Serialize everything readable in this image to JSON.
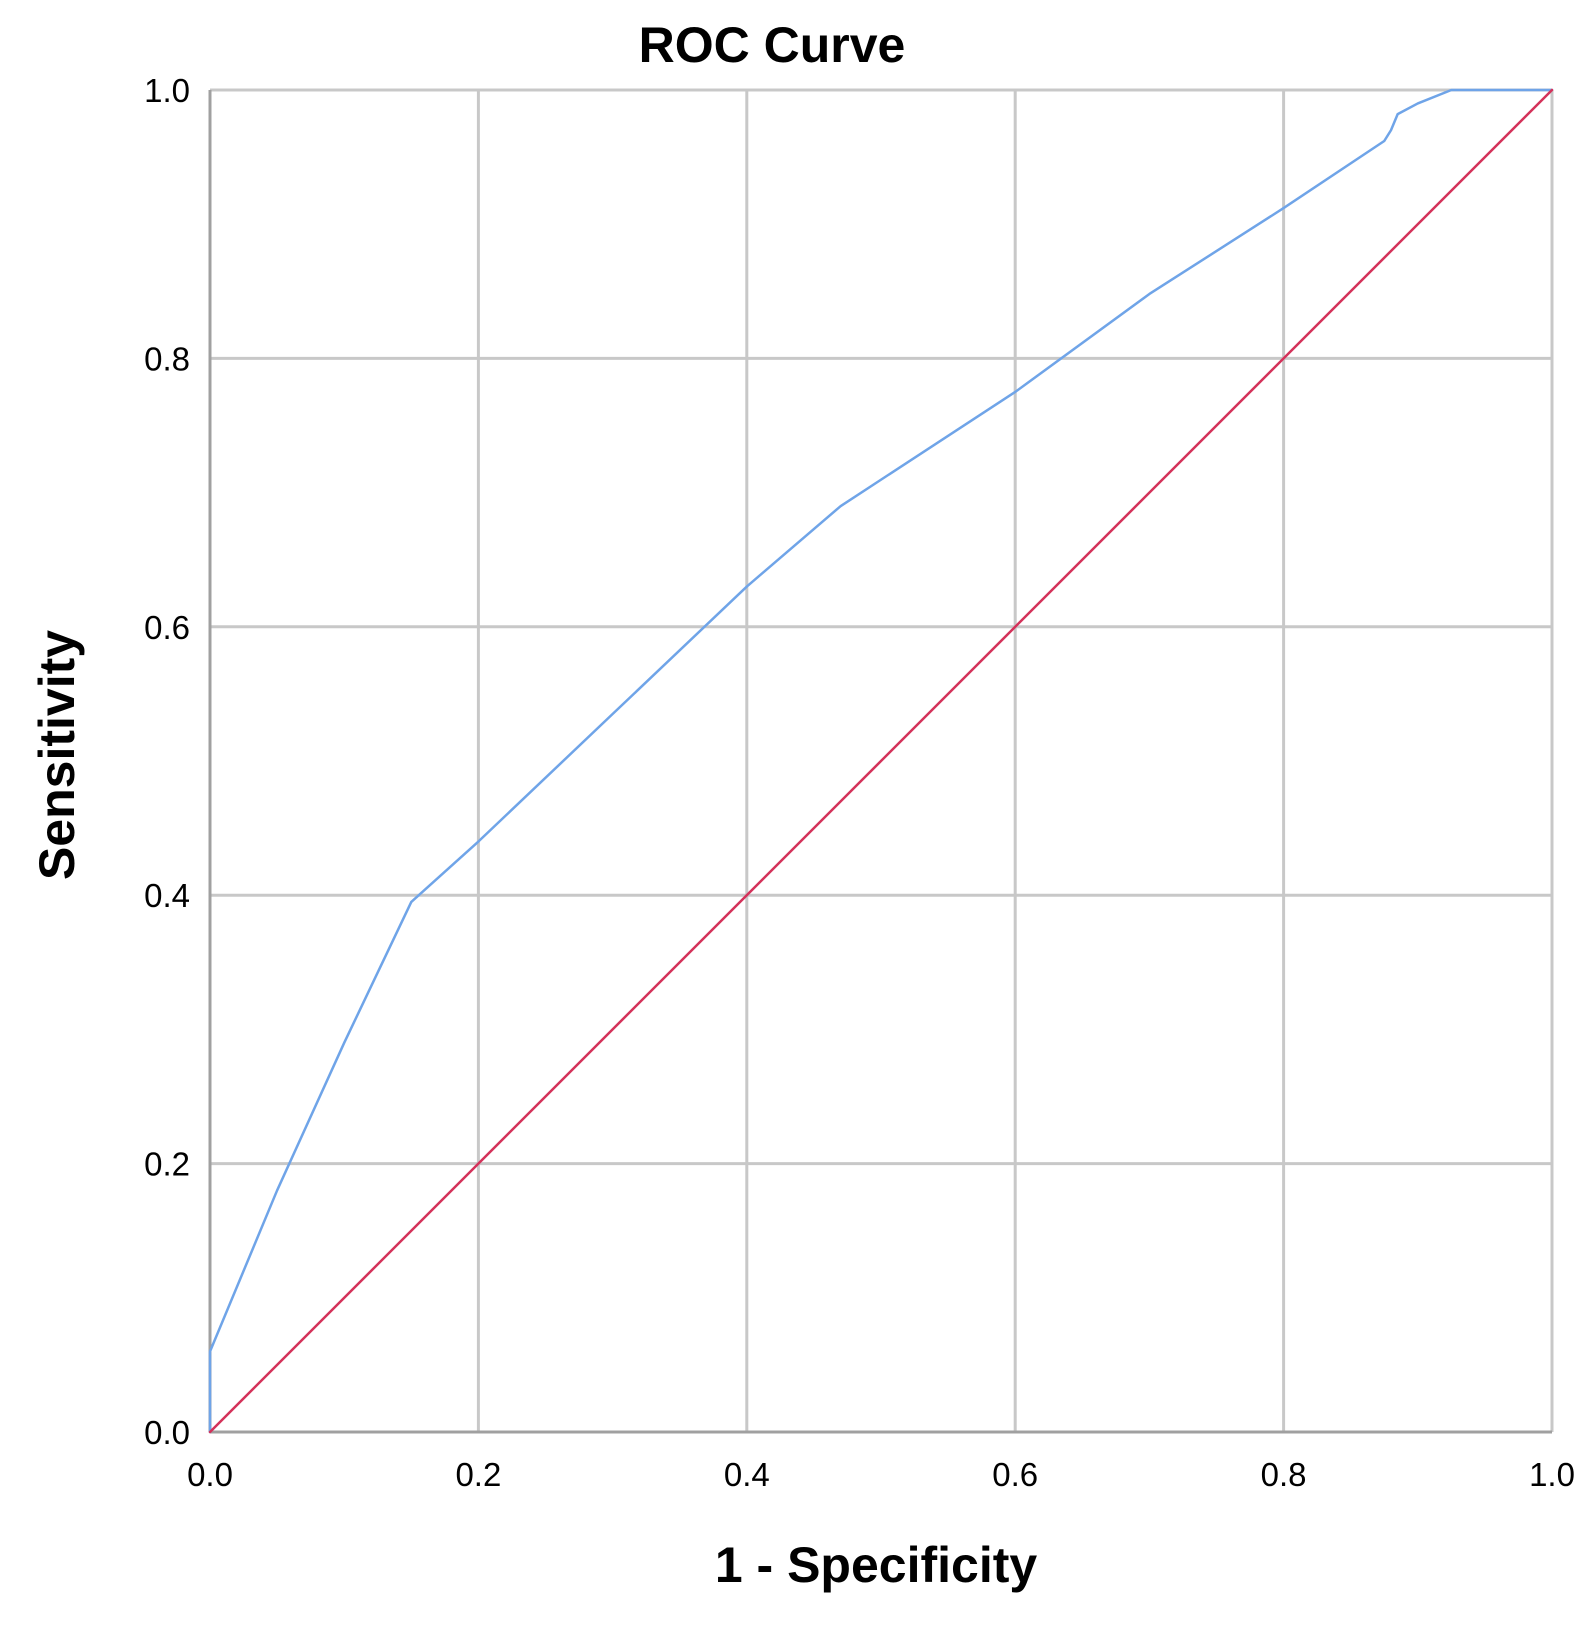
{
  "chart_data": {
    "type": "line",
    "title": "ROC Curve",
    "xlabel": "1 - Specificity",
    "ylabel": "Sensitivity",
    "xlim": [
      0.0,
      1.0
    ],
    "ylim": [
      0.0,
      1.0
    ],
    "grid": true,
    "x_ticks": [
      "0.0",
      "0.2",
      "0.4",
      "0.6",
      "0.8",
      "1.0"
    ],
    "y_ticks": [
      "0.0",
      "0.2",
      "0.4",
      "0.6",
      "0.8",
      "1.0"
    ],
    "series": [
      {
        "color": "#6fa4e8",
        "x": [
          0.0,
          0.0,
          0.0,
          0.05,
          0.1,
          0.15,
          0.2,
          0.3,
          0.4,
          0.47,
          0.6,
          0.7,
          0.8,
          0.875,
          0.88,
          0.885,
          0.9,
          0.925,
          1.0
        ],
        "y": [
          0.0,
          0.03,
          0.06,
          0.18,
          0.29,
          0.395,
          0.44,
          0.535,
          0.63,
          0.69,
          0.775,
          0.848,
          0.912,
          0.962,
          0.97,
          0.982,
          0.99,
          1.0,
          1.0
        ]
      },
      {
        "color": "#d4325a",
        "x": [
          0.0,
          1.0
        ],
        "y": [
          0.0,
          1.0
        ]
      }
    ]
  },
  "colors": {
    "grid": "#c8c8c8",
    "axis": "#a0a0a0",
    "roc_curve": "#6fa4e8",
    "reference_line": "#d4325a"
  }
}
